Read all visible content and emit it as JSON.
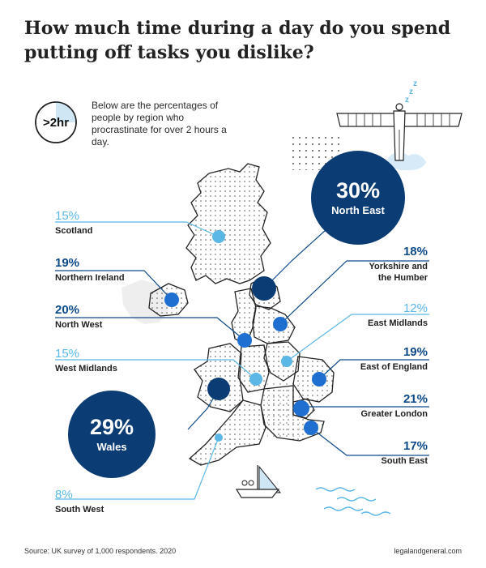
{
  "title": "How much time during a day do you spend\nputting off tasks you dislike?",
  "intro": {
    "badge": ">2hr",
    "text": "Below are the percentages of people by region who procrastinate for over 2 hours a day."
  },
  "regions": [
    {
      "id": "scotland",
      "name": "Scotland",
      "value": "15%",
      "tone": "light"
    },
    {
      "id": "northern-ireland",
      "name": "Northern Ireland",
      "value": "19%",
      "tone": "dark"
    },
    {
      "id": "north-west",
      "name": "North West",
      "value": "20%",
      "tone": "dark"
    },
    {
      "id": "west-midlands",
      "name": "West Midlands",
      "value": "15%",
      "tone": "light"
    },
    {
      "id": "wales",
      "name": "Wales",
      "value": "29%",
      "tone": "big"
    },
    {
      "id": "south-west",
      "name": "South West",
      "value": "8%",
      "tone": "light"
    },
    {
      "id": "north-east",
      "name": "North East",
      "value": "30%",
      "tone": "big"
    },
    {
      "id": "yorkshire",
      "name": "Yorkshire and\nthe Humber",
      "value": "18%",
      "tone": "dark"
    },
    {
      "id": "east-midlands",
      "name": "East Midlands",
      "value": "12%",
      "tone": "light"
    },
    {
      "id": "east-of-england",
      "name": "East of England",
      "value": "19%",
      "tone": "dark"
    },
    {
      "id": "greater-london",
      "name": "Greater London",
      "value": "21%",
      "tone": "dark"
    },
    {
      "id": "south-east",
      "name": "South East",
      "value": "17%",
      "tone": "dark"
    }
  ],
  "footer": {
    "source": "Source: UK survey of 1,000 respondents. 2020",
    "site": "legalandgeneral.com"
  },
  "colors": {
    "dark": "#0d4a8a",
    "light": "#5bb8e6",
    "big": "#0b3c73",
    "mapStroke": "#222222"
  }
}
